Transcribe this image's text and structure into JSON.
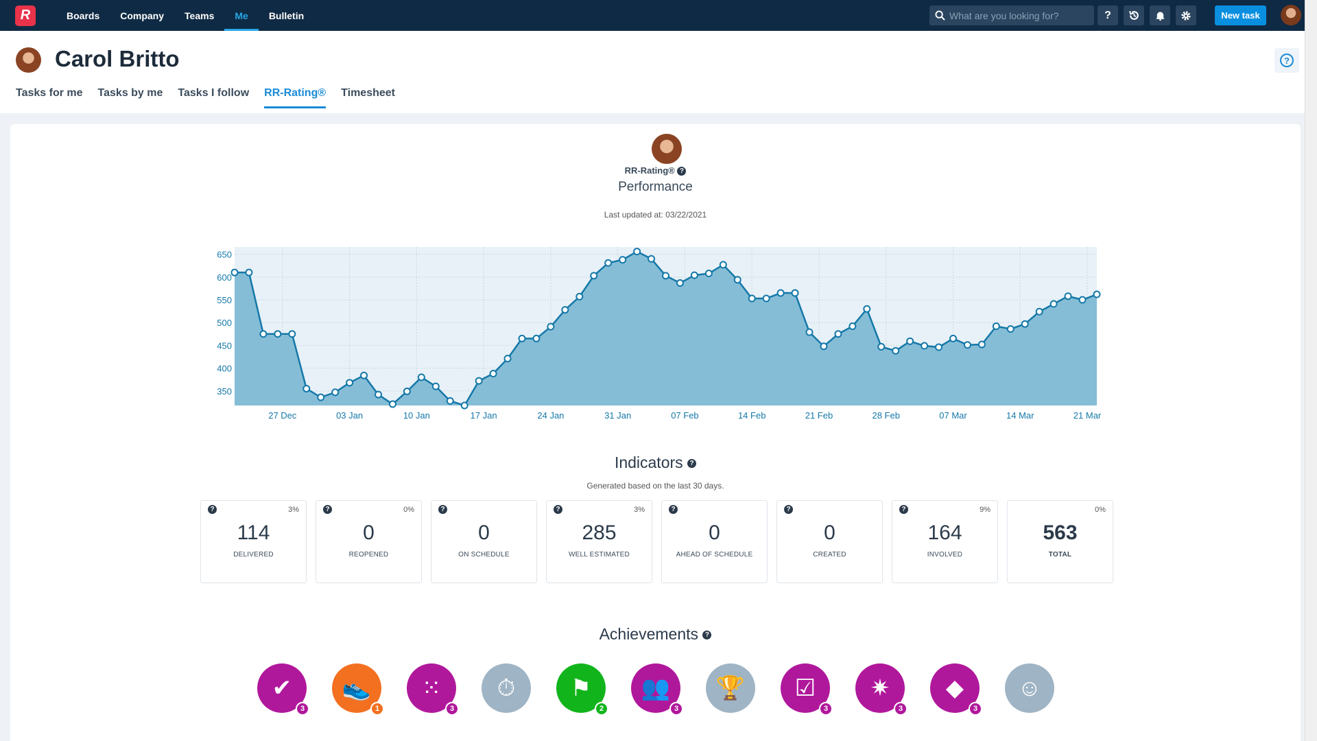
{
  "nav": {
    "logo": "R",
    "links": [
      "Boards",
      "Company",
      "Teams",
      "Me",
      "Bulletin"
    ],
    "active": "Me",
    "search_placeholder": "What are you looking for?",
    "new_task": "New task",
    "help_icon": "?"
  },
  "profile": {
    "name": "Carol Britto",
    "tabs": [
      "Tasks for me",
      "Tasks by me",
      "Tasks I follow",
      "RR-Rating®",
      "Timesheet"
    ],
    "active_tab": "RR-Rating®"
  },
  "rating": {
    "label": "RR-Rating®",
    "subtitle": "Performance",
    "last_updated": "Last updated at: 03/22/2021"
  },
  "chart_data": {
    "type": "area",
    "y_ticks": [
      350,
      400,
      450,
      500,
      550,
      600,
      650
    ],
    "ylim": [
      318,
      660
    ],
    "x_ticks": [
      "27 Dec",
      "03 Jan",
      "10 Jan",
      "17 Jan",
      "24 Jan",
      "31 Jan",
      "07 Feb",
      "14 Feb",
      "21 Feb",
      "28 Feb",
      "07 Mar",
      "14 Mar",
      "21 Mar"
    ],
    "x_start": "2020-12-22",
    "x_end": "2021-03-22",
    "grid": true,
    "values": [
      610,
      610,
      475,
      475,
      475,
      355,
      336,
      347,
      368,
      384,
      342,
      321,
      349,
      380,
      360,
      328,
      318,
      372,
      388,
      421,
      465,
      465,
      491,
      528,
      557,
      603,
      631,
      638,
      656,
      640,
      603,
      587,
      604,
      608,
      627,
      594,
      553,
      553,
      565,
      565,
      479,
      448,
      475,
      492,
      530,
      447,
      438,
      459,
      449,
      446,
      465,
      451,
      452,
      492,
      486,
      497,
      524,
      541,
      558,
      550,
      562
    ],
    "fill_color": "#86bdd6",
    "line_color": "#1478a8"
  },
  "indicators": {
    "title": "Indicators",
    "subtitle": "Generated based on the last 30 days.",
    "items": [
      {
        "value": "114",
        "label": "DELIVERED",
        "pct": "3%"
      },
      {
        "value": "0",
        "label": "REOPENED",
        "pct": "0%"
      },
      {
        "value": "0",
        "label": "ON SCHEDULE",
        "pct": ""
      },
      {
        "value": "285",
        "label": "WELL ESTIMATED",
        "pct": "3%"
      },
      {
        "value": "0",
        "label": "AHEAD OF SCHEDULE",
        "pct": ""
      },
      {
        "value": "0",
        "label": "CREATED",
        "pct": ""
      },
      {
        "value": "164",
        "label": "INVOLVED",
        "pct": "9%"
      },
      {
        "value": "563",
        "label": "TOTAL",
        "pct": "0%"
      }
    ]
  },
  "achievements": {
    "title": "Achievements",
    "badges": [
      {
        "icon": "check-icon",
        "glyph": "✔",
        "color": "#b0189c",
        "count": "3",
        "count_color": "#b0189c"
      },
      {
        "icon": "sneaker-icon",
        "glyph": "👟",
        "color": "#f37021",
        "count": "1",
        "count_color": "#f37021"
      },
      {
        "icon": "dots-grid-icon",
        "glyph": "⁙",
        "color": "#b0189c",
        "count": "3",
        "count_color": "#b0189c"
      },
      {
        "icon": "stopwatch-icon",
        "glyph": "⏱",
        "color": "#9fb4c4",
        "count": "",
        "count_color": ""
      },
      {
        "icon": "flag-icon",
        "glyph": "⚑",
        "color": "#12b41c",
        "count": "2",
        "count_color": "#12b41c"
      },
      {
        "icon": "people-icon",
        "glyph": "👥",
        "color": "#b0189c",
        "count": "3",
        "count_color": "#b0189c"
      },
      {
        "icon": "trophy-icon",
        "glyph": "🏆",
        "color": "#9fb4c4",
        "count": "",
        "count_color": ""
      },
      {
        "icon": "checklist-icon",
        "glyph": "☑",
        "color": "#b0189c",
        "count": "3",
        "count_color": "#b0189c"
      },
      {
        "icon": "star-burst-icon",
        "glyph": "✷",
        "color": "#b0189c",
        "count": "3",
        "count_color": "#b0189c"
      },
      {
        "icon": "diamond-icon",
        "glyph": "◆",
        "color": "#b0189c",
        "count": "3",
        "count_color": "#b0189c"
      },
      {
        "icon": "smiley-icon",
        "glyph": "☺",
        "color": "#9fb4c4",
        "count": "",
        "count_color": ""
      }
    ]
  }
}
